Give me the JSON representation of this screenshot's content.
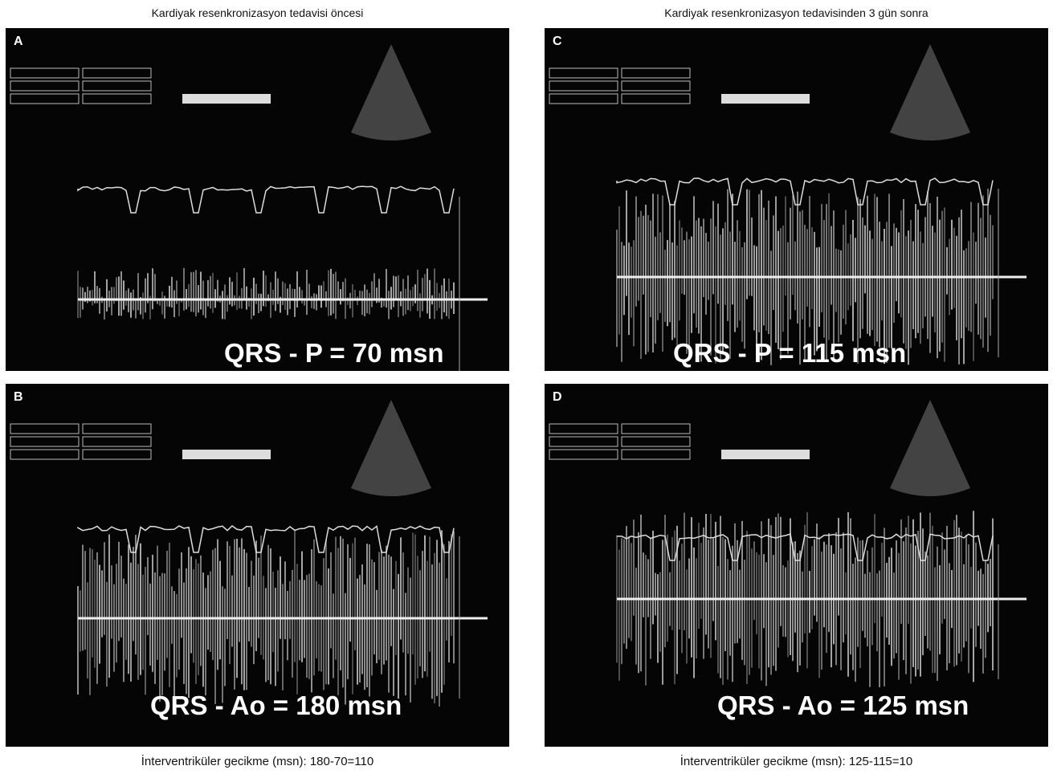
{
  "columns": [
    {
      "title": "Kardiyak resenkronizasyon tedavisi öncesi",
      "caption": "İnterventriküler gecikme (msn): 180-70=110",
      "panels": [
        {
          "letter": "A",
          "measurement": "QRS - P = 70 msn"
        },
        {
          "letter": "B",
          "measurement": "QRS - Ao = 180 msn"
        }
      ]
    },
    {
      "title": "Kardiyak resenkronizasyon tedavisinden 3 gün sonra",
      "caption": "İnterventriküler gecikme (msn): 125-115=10",
      "panels": [
        {
          "letter": "C",
          "measurement": "QRS - P = 115 msn"
        },
        {
          "letter": "D",
          "measurement": "QRS - Ao = 125 msn"
        }
      ]
    }
  ]
}
